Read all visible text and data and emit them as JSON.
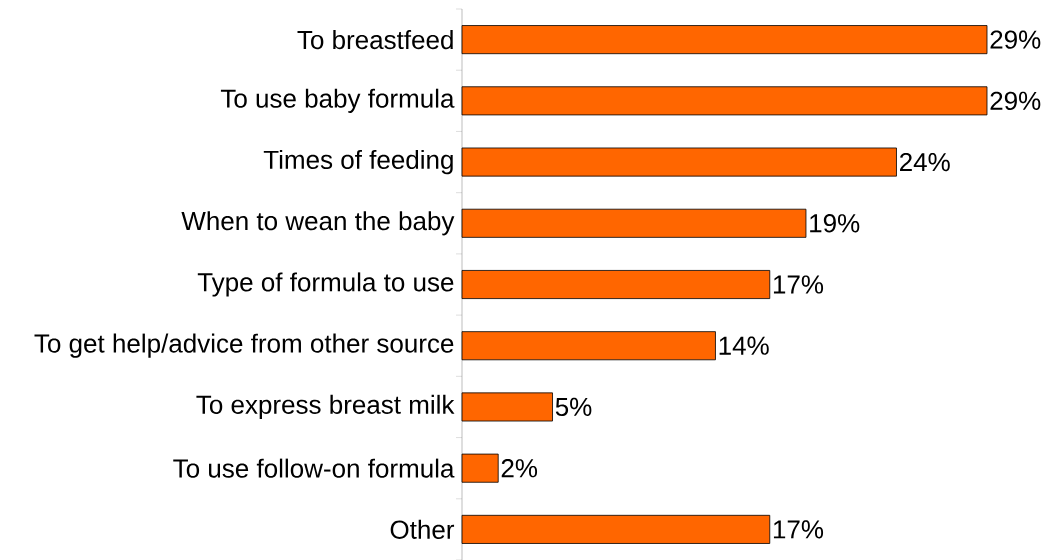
{
  "chart_data": {
    "type": "bar",
    "orientation": "horizontal",
    "categories": [
      "To breastfeed",
      "To use baby formula",
      "Times of feeding",
      "When to wean the baby",
      "Type of formula to use",
      "To get help/advice from other source",
      "To express breast milk",
      "To use follow-on formula",
      "Other"
    ],
    "values": [
      29,
      29,
      24,
      19,
      17,
      14,
      5,
      2,
      17
    ],
    "value_labels": [
      "29%",
      "29%",
      "24%",
      "19%",
      "17%",
      "14%",
      "5%",
      "2%",
      "17%"
    ],
    "color": "#ff6600"
  }
}
